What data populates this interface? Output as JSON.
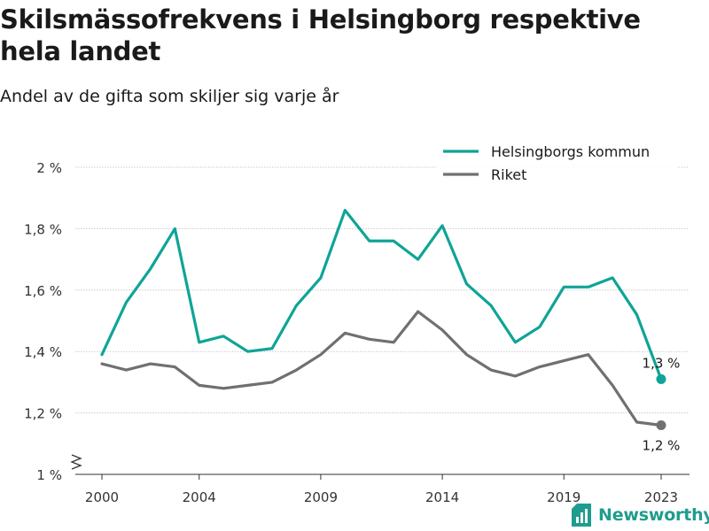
{
  "title": "Skilsmässofrekvens i Helsingborg respektive hela landet",
  "subtitle": "Andel av de gifta som skiljer sig varje år",
  "brand": {
    "name": "Newsworthy",
    "logo_icon": "bar-chart-icon"
  },
  "colors": {
    "helsingborg": "#0fa497",
    "riket": "#707070",
    "grid": "#cccccc",
    "brand": "#1f9c8e"
  },
  "chart_data": {
    "type": "line",
    "x": [
      2000,
      2001,
      2002,
      2003,
      2004,
      2005,
      2006,
      2007,
      2008,
      2009,
      2010,
      2011,
      2012,
      2013,
      2014,
      2015,
      2016,
      2017,
      2018,
      2019,
      2020,
      2021,
      2022,
      2023
    ],
    "x_ticks": [
      "2000",
      "2004",
      "2009",
      "2014",
      "2019",
      "2023"
    ],
    "y_ticks": [
      "1 %",
      "1,2 %",
      "1,4 %",
      "1,6 %",
      "1,8 %",
      "2 %"
    ],
    "ylim": [
      1.0,
      2.0
    ],
    "y_axis_broken": true,
    "grid": "horizontal",
    "legend_position": "top-right",
    "series": [
      {
        "name": "Helsingborgs kommun",
        "color": "#0fa497",
        "values": [
          1.39,
          1.56,
          1.67,
          1.8,
          1.43,
          1.45,
          1.4,
          1.41,
          1.55,
          1.64,
          1.86,
          1.76,
          1.76,
          1.7,
          1.81,
          1.62,
          1.55,
          1.43,
          1.48,
          1.61,
          1.61,
          1.64,
          1.52,
          1.31
        ],
        "end_label": "1,3 %"
      },
      {
        "name": "Riket",
        "color": "#707070",
        "values": [
          1.36,
          1.34,
          1.36,
          1.35,
          1.29,
          1.28,
          1.29,
          1.3,
          1.34,
          1.39,
          1.46,
          1.44,
          1.43,
          1.53,
          1.47,
          1.39,
          1.34,
          1.32,
          1.35,
          1.37,
          1.39,
          1.29,
          1.17,
          1.16
        ],
        "end_label": "1,2 %"
      }
    ]
  }
}
